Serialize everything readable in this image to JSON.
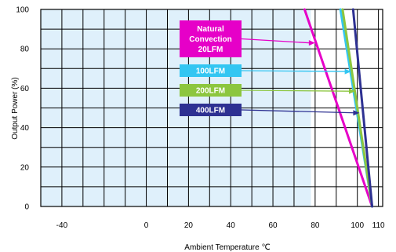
{
  "chart_data": {
    "type": "line",
    "title": "",
    "xlabel": "Ambient Temperature  ℃",
    "ylabel": "Output Power  (%)",
    "xlim": [
      -50,
      112
    ],
    "ylim": [
      0,
      100
    ],
    "x_ticks": [
      -40,
      0,
      20,
      40,
      60,
      80,
      100,
      110
    ],
    "x_tick_labels": [
      "-40",
      "0",
      "20",
      "40",
      "60",
      "80",
      "100",
      "110"
    ],
    "y_ticks": [
      0,
      20,
      40,
      60,
      80,
      100
    ],
    "y_tick_labels": [
      "0",
      "20",
      "40",
      "60",
      "80",
      "100"
    ],
    "grid": true,
    "shaded_region": {
      "from": -50,
      "to": 78,
      "color": "#dff0fb"
    },
    "series": [
      {
        "name": "Natural Convection 20LFM",
        "color": "#e600c8",
        "x": [
          75,
          107
        ],
        "y": [
          100,
          0
        ],
        "label_box": {
          "lines": [
            "Natural",
            "Convection",
            "20LFM"
          ],
          "arrow_to": [
            80,
            83
          ]
        }
      },
      {
        "name": "100LFM",
        "color": "#33c6f2",
        "x": [
          92,
          107
        ],
        "y": [
          100,
          0
        ],
        "label_box": {
          "lines": [
            "100LFM"
          ],
          "arrow_to": [
            97,
            68.5
          ]
        }
      },
      {
        "name": "200LFM",
        "color": "#8cc63f",
        "x": [
          93,
          107
        ],
        "y": [
          100,
          0
        ],
        "label_box": {
          "lines": [
            "200LFM"
          ],
          "arrow_to": [
            99,
            58.5
          ]
        }
      },
      {
        "name": "400LFM",
        "color": "#2e3192",
        "x": [
          98,
          107
        ],
        "y": [
          100,
          0
        ],
        "label_box": {
          "lines": [
            "400LFM"
          ],
          "arrow_to": [
            101,
            47.5
          ]
        }
      }
    ]
  }
}
